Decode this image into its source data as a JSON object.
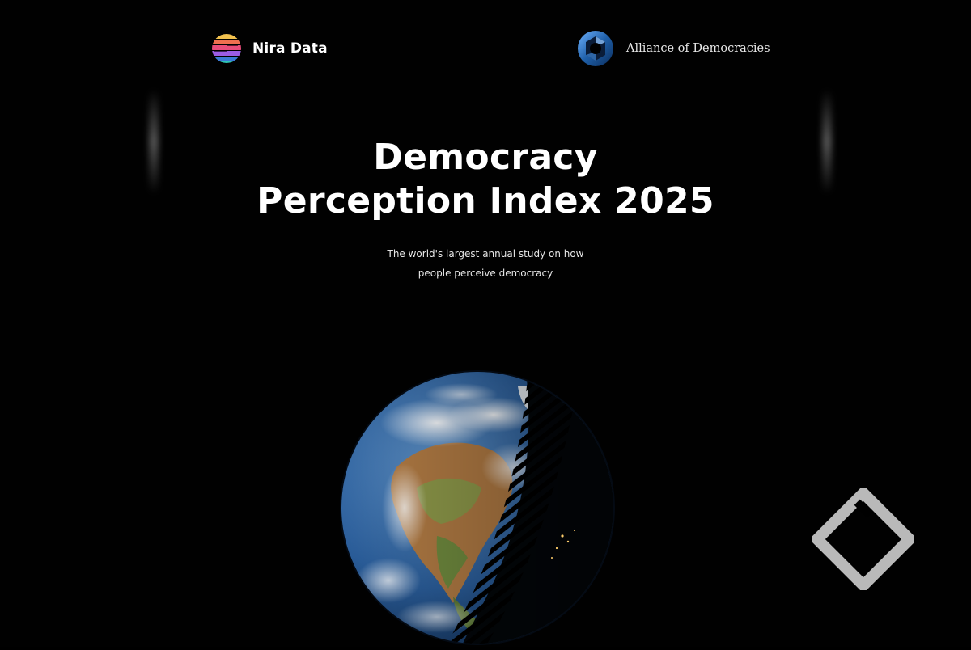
{
  "header": {
    "left_brand": {
      "name": "Nira Data",
      "icon": "nira-data-logo-icon"
    },
    "right_brand": {
      "name": "Alliance of Democracies",
      "icon": "alliance-of-democracies-logo-icon"
    }
  },
  "hero": {
    "title_line1": "Democracy",
    "title_line2": "Perception Index 2025",
    "subtitle_line1": "The world's largest annual study on how",
    "subtitle_line2": "people perceive democracy"
  },
  "illustration": {
    "icon": "earth-globe-day-night-icon"
  },
  "watermark": {
    "icon": "diamond-watermark-icon"
  },
  "colors": {
    "background": "#010101",
    "text": "#ffffff",
    "alliance_blue": "#1f5fa8",
    "ocean": "#2a5d9a"
  }
}
